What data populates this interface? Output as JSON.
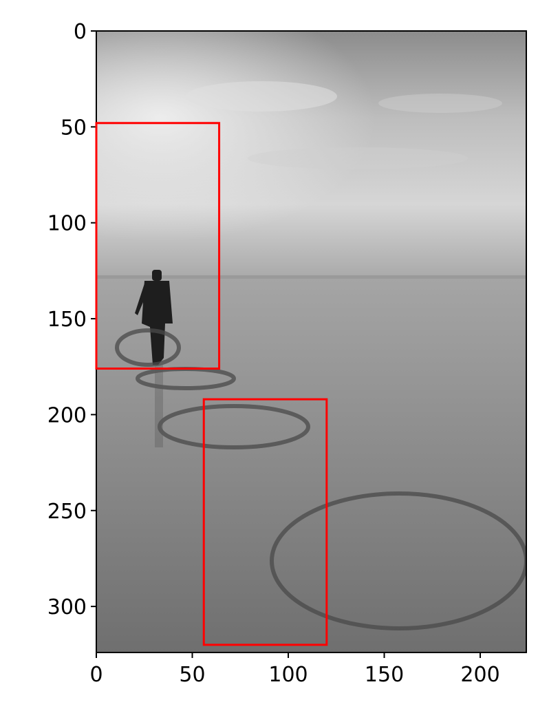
{
  "image": {
    "description_kind": "grayscale beach photo",
    "extent": {
      "x": [
        0,
        224
      ],
      "y": [
        0,
        324
      ]
    }
  },
  "axes": {
    "x_ticks": [
      {
        "value": 0,
        "label": "0"
      },
      {
        "value": 50,
        "label": "50"
      },
      {
        "value": 100,
        "label": "100"
      },
      {
        "value": 150,
        "label": "150"
      },
      {
        "value": 200,
        "label": "200"
      }
    ],
    "y_ticks": [
      {
        "value": 0,
        "label": "0"
      },
      {
        "value": 50,
        "label": "50"
      },
      {
        "value": 100,
        "label": "100"
      },
      {
        "value": 150,
        "label": "150"
      },
      {
        "value": 200,
        "label": "200"
      },
      {
        "value": 250,
        "label": "250"
      },
      {
        "value": 300,
        "label": "300"
      }
    ]
  },
  "boxes": [
    {
      "x0": 0,
      "y0": 48,
      "x1": 64,
      "y1": 176,
      "color": "#ff0000"
    },
    {
      "x0": 56,
      "y0": 192,
      "x1": 120,
      "y1": 320,
      "color": "#ff0000"
    }
  ]
}
